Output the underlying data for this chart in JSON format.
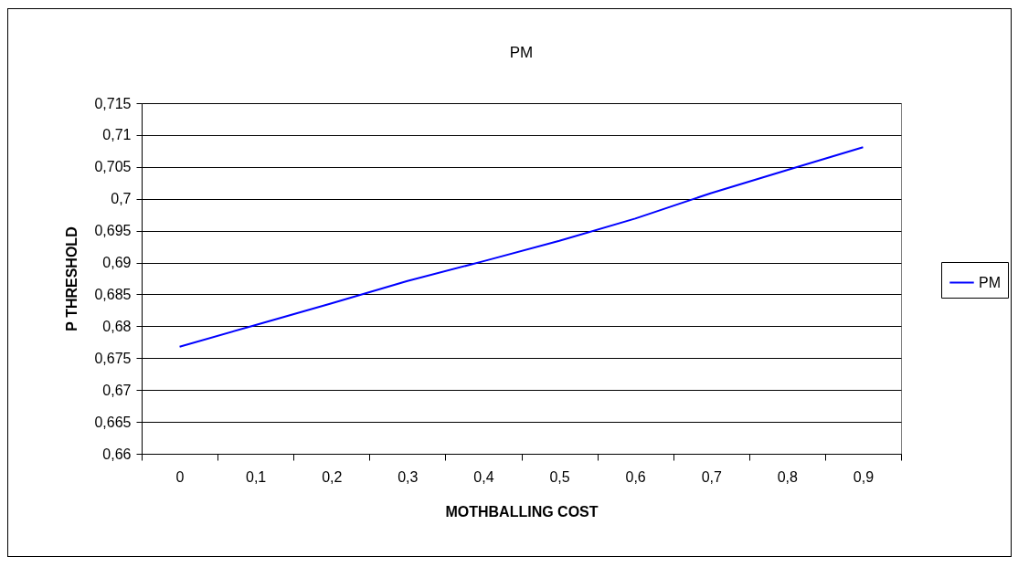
{
  "chart_data": {
    "type": "line",
    "title": "PM",
    "xlabel": "MOTHBALLING COST",
    "ylabel": "P THRESHOLD",
    "categories": [
      "0",
      "0,1",
      "0,2",
      "0,3",
      "0,4",
      "0,5",
      "0,6",
      "0,7",
      "0,8",
      "0,9"
    ],
    "series": [
      {
        "name": "PM",
        "color": "#0000ff",
        "values": [
          0.6768,
          0.6802,
          0.6836,
          0.6871,
          0.6902,
          0.6934,
          0.6969,
          0.7009,
          0.7045,
          0.7081
        ]
      }
    ],
    "ylim": [
      0.66,
      0.715
    ],
    "yticks": [
      {
        "value": 0.66,
        "label": "0,66"
      },
      {
        "value": 0.665,
        "label": "0,665"
      },
      {
        "value": 0.67,
        "label": "0,67"
      },
      {
        "value": 0.675,
        "label": "0,675"
      },
      {
        "value": 0.68,
        "label": "0,68"
      },
      {
        "value": 0.685,
        "label": "0,685"
      },
      {
        "value": 0.69,
        "label": "0,69"
      },
      {
        "value": 0.695,
        "label": "0,695"
      },
      {
        "value": 0.7,
        "label": "0,7"
      },
      {
        "value": 0.705,
        "label": "0,705"
      },
      {
        "value": 0.71,
        "label": "0,71"
      },
      {
        "value": 0.715,
        "label": "0,715"
      }
    ],
    "grid": "y",
    "legend": "right",
    "marker": "none",
    "line_style": "solid"
  }
}
